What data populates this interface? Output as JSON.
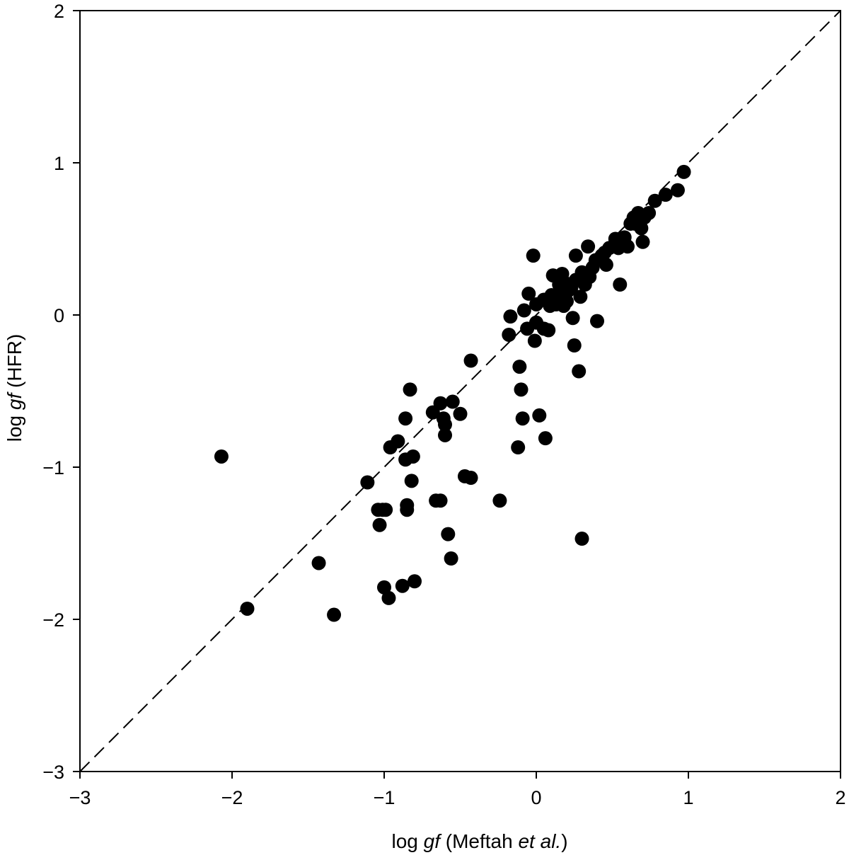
{
  "chart_data": {
    "type": "scatter",
    "xlabel": {
      "pre": "log ",
      "italic": "gf",
      "post": " (Meftah ",
      "italic2": "et al.",
      "post2": ")"
    },
    "ylabel": {
      "pre": "log ",
      "italic": "gf",
      "post": " (HFR)"
    },
    "xlim": [
      -3,
      2
    ],
    "ylim": [
      -3,
      2
    ],
    "xticks": [
      -3,
      -2,
      -1,
      0,
      1,
      2
    ],
    "yticks": [
      -3,
      -2,
      -1,
      0,
      1,
      2
    ],
    "xtick_labels": [
      "−3",
      "−2",
      "−1",
      "0",
      "1",
      "2"
    ],
    "ytick_labels": [
      "−3",
      "−2",
      "−1",
      "0",
      "1",
      "2"
    ],
    "reference_line": {
      "style": "dashed",
      "from": [
        -3,
        -3
      ],
      "to": [
        2,
        2
      ]
    },
    "marker_color": "#000000",
    "points": [
      [
        -2.07,
        -0.93
      ],
      [
        -1.9,
        -1.93
      ],
      [
        -1.43,
        -1.63
      ],
      [
        -1.33,
        -1.97
      ],
      [
        -1.11,
        -1.1
      ],
      [
        -1.04,
        -1.28
      ],
      [
        -1.03,
        -1.38
      ],
      [
        -1.01,
        -1.28
      ],
      [
        -0.99,
        -1.28
      ],
      [
        -1.0,
        -1.79
      ],
      [
        -0.97,
        -1.86
      ],
      [
        -0.96,
        -0.87
      ],
      [
        -0.91,
        -0.83
      ],
      [
        -0.88,
        -1.78
      ],
      [
        -0.86,
        -0.68
      ],
      [
        -0.86,
        -0.95
      ],
      [
        -0.85,
        -1.25
      ],
      [
        -0.85,
        -1.28
      ],
      [
        -0.83,
        -0.49
      ],
      [
        -0.82,
        -1.09
      ],
      [
        -0.81,
        -0.93
      ],
      [
        -0.8,
        -1.75
      ],
      [
        -0.68,
        -0.64
      ],
      [
        -0.66,
        -1.22
      ],
      [
        -0.63,
        -1.22
      ],
      [
        -0.63,
        -0.58
      ],
      [
        -0.61,
        -0.68
      ],
      [
        -0.6,
        -0.72
      ],
      [
        -0.6,
        -0.79
      ],
      [
        -0.58,
        -1.44
      ],
      [
        -0.56,
        -1.6
      ],
      [
        -0.55,
        -0.57
      ],
      [
        -0.5,
        -0.65
      ],
      [
        -0.47,
        -1.06
      ],
      [
        -0.43,
        -1.07
      ],
      [
        -0.43,
        -0.3
      ],
      [
        -0.24,
        -1.22
      ],
      [
        -0.18,
        -0.13
      ],
      [
        -0.17,
        -0.01
      ],
      [
        -0.12,
        -0.87
      ],
      [
        -0.11,
        -0.34
      ],
      [
        -0.1,
        -0.49
      ],
      [
        -0.09,
        -0.68
      ],
      [
        -0.08,
        0.03
      ],
      [
        -0.06,
        -0.09
      ],
      [
        -0.05,
        0.14
      ],
      [
        -0.02,
        0.39
      ],
      [
        -0.01,
        -0.17
      ],
      [
        0.0,
        -0.05
      ],
      [
        0.0,
        0.07
      ],
      [
        0.02,
        -0.66
      ],
      [
        0.05,
        0.1
      ],
      [
        0.05,
        -0.09
      ],
      [
        0.06,
        -0.81
      ],
      [
        0.08,
        -0.1
      ],
      [
        0.09,
        0.06
      ],
      [
        0.1,
        0.13
      ],
      [
        0.11,
        0.26
      ],
      [
        0.13,
        0.07
      ],
      [
        0.14,
        0.1
      ],
      [
        0.15,
        0.2
      ],
      [
        0.16,
        0.15
      ],
      [
        0.17,
        0.27
      ],
      [
        0.18,
        0.06
      ],
      [
        0.19,
        0.21
      ],
      [
        0.2,
        0.09
      ],
      [
        0.21,
        0.16
      ],
      [
        0.23,
        0.18
      ],
      [
        0.24,
        -0.02
      ],
      [
        0.25,
        -0.2
      ],
      [
        0.26,
        0.23
      ],
      [
        0.26,
        0.39
      ],
      [
        0.28,
        -0.37
      ],
      [
        0.29,
        0.12
      ],
      [
        0.3,
        -1.47
      ],
      [
        0.3,
        0.28
      ],
      [
        0.32,
        0.2
      ],
      [
        0.34,
        0.45
      ],
      [
        0.35,
        0.25
      ],
      [
        0.37,
        0.31
      ],
      [
        0.39,
        0.36
      ],
      [
        0.4,
        -0.04
      ],
      [
        0.43,
        0.39
      ],
      [
        0.45,
        0.41
      ],
      [
        0.46,
        0.33
      ],
      [
        0.48,
        0.44
      ],
      [
        0.52,
        0.5
      ],
      [
        0.54,
        0.44
      ],
      [
        0.55,
        0.2
      ],
      [
        0.57,
        0.49
      ],
      [
        0.58,
        0.51
      ],
      [
        0.6,
        0.45
      ],
      [
        0.62,
        0.6
      ],
      [
        0.64,
        0.64
      ],
      [
        0.65,
        0.6
      ],
      [
        0.66,
        0.62
      ],
      [
        0.67,
        0.67
      ],
      [
        0.69,
        0.57
      ],
      [
        0.7,
        0.48
      ],
      [
        0.71,
        0.64
      ],
      [
        0.74,
        0.67
      ],
      [
        0.78,
        0.75
      ],
      [
        0.85,
        0.79
      ],
      [
        0.93,
        0.82
      ],
      [
        0.97,
        0.94
      ]
    ]
  }
}
